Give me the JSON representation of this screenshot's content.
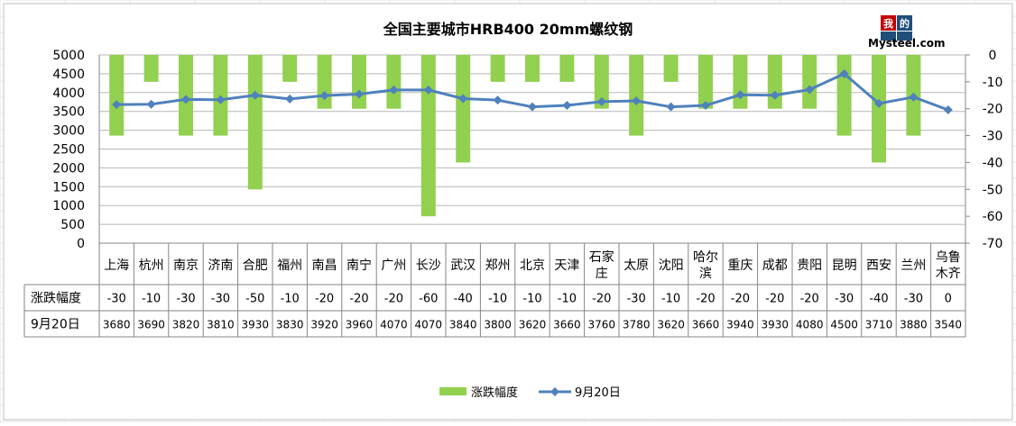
{
  "chart_data": {
    "type": "bar",
    "title": "全国主要城市HRB400 20mm螺纹钢",
    "logo": {
      "top": "我的",
      "bottom": "钢铁",
      "brand": "Mysteel.com"
    },
    "categories": [
      "上海",
      "杭州",
      "南京",
      "济南",
      "合肥",
      "福州",
      "南昌",
      "南宁",
      "广州",
      "长沙",
      "武汉",
      "郑州",
      "北京",
      "天津",
      "石家庄",
      "太原",
      "沈阳",
      "哈尔滨",
      "重庆",
      "成都",
      "贵阳",
      "昆明",
      "西安",
      "兰州",
      "乌鲁木齐"
    ],
    "series": [
      {
        "name": "涨跌幅度",
        "type": "bar",
        "axis": "right",
        "color": "#92D050",
        "values": [
          -30,
          -10,
          -30,
          -30,
          -50,
          -10,
          -20,
          -20,
          -20,
          -60,
          -40,
          -10,
          -10,
          -10,
          -20,
          -30,
          -10,
          -20,
          -20,
          -20,
          -20,
          -30,
          -40,
          -30,
          0
        ]
      },
      {
        "name": "9月20日",
        "type": "line",
        "axis": "left",
        "color": "#4F81BD",
        "values": [
          3680,
          3690,
          3820,
          3810,
          3930,
          3830,
          3920,
          3960,
          4070,
          4070,
          3840,
          3800,
          3620,
          3660,
          3760,
          3780,
          3620,
          3660,
          3940,
          3930,
          4080,
          4500,
          3710,
          3880,
          3540
        ]
      }
    ],
    "y_left": {
      "min": 0,
      "max": 5000,
      "step": 500,
      "ticks": [
        "0",
        "500",
        "1000",
        "1500",
        "2000",
        "2500",
        "3000",
        "3500",
        "4000",
        "4500",
        "5000"
      ]
    },
    "y_right": {
      "min": -70,
      "max": 0,
      "step": 10,
      "ticks": [
        "0",
        "-10",
        "-20",
        "-30",
        "-40",
        "-50",
        "-60",
        "-70"
      ]
    },
    "grid": true,
    "legend_position": "bottom",
    "data_table": {
      "row_labels": [
        "涨跌幅度",
        "9月20日"
      ]
    }
  }
}
